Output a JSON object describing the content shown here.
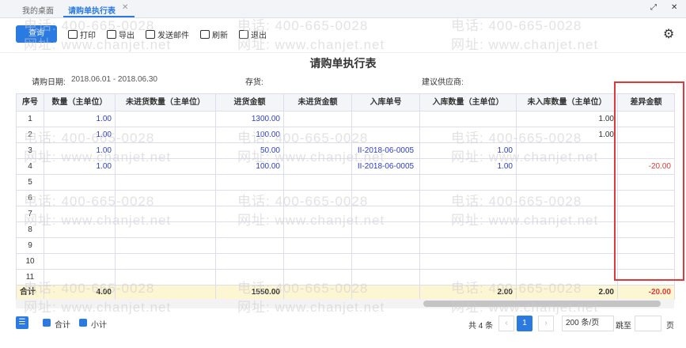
{
  "tabs": [
    "我的桌面",
    "请购单执行表"
  ],
  "toolbar": {
    "query": "查询",
    "buttons": [
      "打印",
      "导出",
      "发送邮件",
      "刷新",
      "退出"
    ]
  },
  "watermark": [
    "电话: 400-665-0028",
    "网址: www.chanjet.net"
  ],
  "report": {
    "title": "请购单执行表",
    "filters": [
      {
        "label": "请购日期:",
        "value": "2018.06.01 - 2018.06.30"
      },
      {
        "label": "存货:"
      },
      {
        "label": "建议供应商:"
      }
    ]
  },
  "table": {
    "columns": [
      "序号",
      "数量（主单位）",
      "未进货数量（主单位）",
      "进货金额",
      "未进货金额",
      "入库单号",
      "入库数量（主单位）",
      "未入库数量（主单位）",
      "差异金额"
    ],
    "rows": [
      [
        "1",
        "1.00",
        null,
        "1300.00",
        null,
        null,
        null,
        "1.00",
        null
      ],
      [
        "2",
        "1.00",
        null,
        "100.00",
        null,
        null,
        null,
        "1.00",
        null
      ],
      [
        "3",
        "1.00",
        null,
        "50.00",
        null,
        "II-2018-06-0005",
        "1.00",
        null,
        null
      ],
      [
        "4",
        "1.00",
        null,
        "100.00",
        null,
        "II-2018-06-0005",
        "1.00",
        null,
        "-20.00"
      ],
      [
        "5"
      ],
      [
        "6"
      ],
      [
        "7"
      ],
      [
        "8"
      ],
      [
        "9"
      ],
      [
        "10"
      ],
      [
        "11"
      ]
    ],
    "total": [
      "合计",
      "4.00",
      null,
      "1550.00",
      null,
      null,
      "2.00",
      "2.00",
      "-20.00"
    ]
  },
  "footer": {
    "checks": [
      "合计",
      "小计"
    ],
    "count": "共 4 条",
    "page": "1",
    "page_size": "200 条/页",
    "jump": "跳至",
    "unit": "页"
  }
}
